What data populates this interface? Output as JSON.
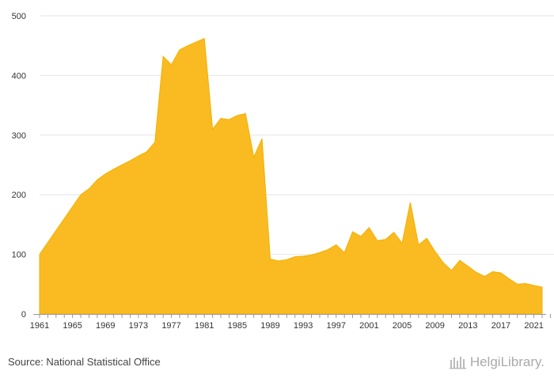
{
  "chart_data": {
    "type": "area",
    "title": "",
    "xlabel": "",
    "ylabel": "",
    "ylim": [
      0,
      500
    ],
    "yticks": [
      0,
      100,
      200,
      300,
      400,
      500
    ],
    "xticks": [
      1961,
      1965,
      1969,
      1973,
      1977,
      1981,
      1985,
      1989,
      1993,
      1997,
      2001,
      2005,
      2009,
      2013,
      2017,
      2021
    ],
    "grid": true,
    "legend": "none",
    "color": "#f9bb21",
    "x": [
      1961,
      1962,
      1963,
      1964,
      1965,
      1966,
      1967,
      1968,
      1969,
      1970,
      1971,
      1972,
      1973,
      1974,
      1975,
      1976,
      1977,
      1978,
      1979,
      1980,
      1981,
      1982,
      1983,
      1984,
      1985,
      1986,
      1987,
      1988,
      1989,
      1990,
      1991,
      1992,
      1993,
      1994,
      1995,
      1996,
      1997,
      1998,
      1999,
      2000,
      2001,
      2002,
      2003,
      2004,
      2005,
      2006,
      2007,
      2008,
      2009,
      2010,
      2011,
      2012,
      2013,
      2014,
      2015,
      2016,
      2017,
      2018,
      2019,
      2020,
      2021,
      2022
    ],
    "y": [
      100,
      120,
      140,
      160,
      180,
      200,
      210,
      225,
      235,
      243,
      250,
      257,
      265,
      272,
      288,
      432,
      418,
      443,
      450,
      456,
      462,
      310,
      328,
      326,
      333,
      336,
      263,
      294,
      92,
      89,
      91,
      96,
      97,
      99,
      103,
      108,
      116,
      103,
      138,
      130,
      145,
      123,
      125,
      137,
      119,
      187,
      116,
      127,
      105,
      86,
      73,
      90,
      80,
      70,
      63,
      71,
      69,
      59,
      50,
      51,
      48,
      45
    ]
  },
  "footer": {
    "source": "Source: National Statistical Office",
    "brand": "HelgiLibrary."
  }
}
